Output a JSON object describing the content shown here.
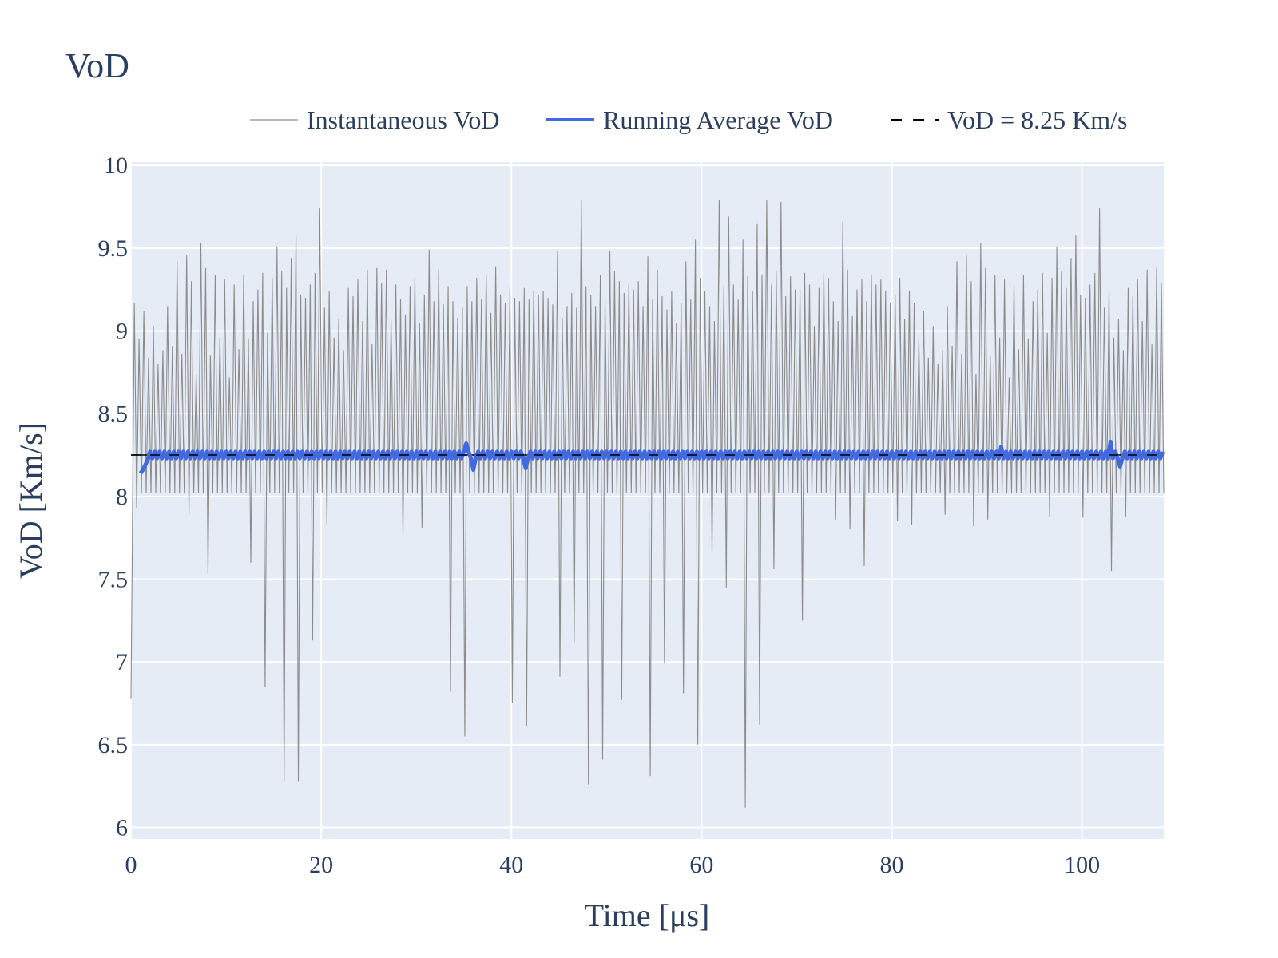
{
  "chart_data": {
    "type": "line",
    "title": "VoD",
    "xlabel": "Time [μs]",
    "ylabel": "VoD [Km/s]",
    "xlim": [
      0,
      108.6
    ],
    "ylim": [
      5.93,
      10.02
    ],
    "x_ticks": [
      0,
      20,
      40,
      60,
      80,
      100
    ],
    "x_tick_labels": [
      "0",
      "20",
      "40",
      "60",
      "80",
      "100"
    ],
    "y_ticks": [
      6,
      6.5,
      7,
      7.5,
      8,
      8.5,
      9,
      9.5,
      10
    ],
    "y_tick_labels": [
      "6",
      "6.5",
      "7",
      "7.5",
      "8",
      "8.5",
      "9",
      "9.5",
      "10"
    ],
    "grid": true,
    "legend_position": "top-right",
    "colors": {
      "plot_bg": "#e5ecf6",
      "grid": "#ffffff",
      "instantaneous": "#8c8c8c",
      "running_average": "#4169e1",
      "reference": "#000000",
      "text": "#2a3f5f"
    },
    "series": [
      {
        "name": "Instantaneous VoD",
        "style": "thin-gray",
        "sample_interval": 0.5,
        "baseline": 8.02,
        "x_range": [
          0,
          108.6
        ],
        "peaks": [
          9.17,
          8.95,
          9.12,
          8.84,
          9.03,
          8.8,
          8.88,
          9.15,
          8.91,
          9.42,
          8.86,
          9.46,
          9.3,
          8.74,
          9.53,
          9.38,
          8.85,
          9.34,
          8.96,
          9.31,
          8.72,
          9.28,
          8.89,
          9.34,
          8.95,
          9.18,
          9.25,
          9.35,
          8.99,
          9.32,
          9.51,
          9.36,
          9.26,
          9.44,
          9.58,
          9.22,
          9.2,
          9.28,
          9.35,
          9.74,
          9.14,
          9.24,
          8.96,
          9.07,
          8.88,
          9.26,
          9.21,
          9.31,
          9.06,
          9.37,
          8.92,
          9.38,
          9.29,
          9.37,
          9.07,
          9.28,
          9.19,
          9.1,
          9.27,
          9.32,
          9.05,
          9.22,
          9.49,
          9.18,
          9.37,
          9.16,
          9.27,
          9.18,
          9.08,
          9.14,
          9.27,
          9.18,
          9.32,
          9.19,
          9.34,
          9.11,
          9.39,
          9.22,
          9.17,
          9.27,
          9.2,
          9.18,
          9.26,
          9.19,
          9.24,
          9.22,
          9.24,
          9.2,
          9.16,
          9.48,
          9.08,
          9.15,
          9.23,
          9.14,
          9.79,
          9.27,
          9.22,
          9.15,
          9.34,
          9.19,
          9.48,
          9.36,
          9.3,
          9.23,
          9.28,
          9.25,
          9.3,
          9.15,
          9.45,
          9.19,
          9.37,
          9.21,
          9.13,
          9.24,
          9.05,
          9.17,
          9.42,
          9.19,
          9.55,
          9.32,
          9.24,
          9.15,
          9.06,
          9.79,
          9.27,
          9.69,
          9.28,
          9.19,
          9.55,
          9.33,
          9.24,
          9.65,
          9.34,
          9.79,
          9.28,
          9.36,
          9.78,
          9.21,
          9.33,
          9.25,
          9.25,
          9.35,
          9.28,
          9.03,
          9.26,
          9.35,
          9.32,
          9.18,
          9.06,
          9.66,
          9.37,
          9.09,
          9.25,
          9.31,
          9.18,
          9.34,
          9.28,
          9.31,
          9.24,
          9.17,
          9.22,
          9.32,
          9.07,
          9.24
        ],
        "dips": [
          {
            "x": 0.1,
            "y": 6.78
          },
          {
            "x": 0.4,
            "y": 7.93
          },
          {
            "x": 6.3,
            "y": 7.89
          },
          {
            "x": 7.9,
            "y": 7.53
          },
          {
            "x": 12.7,
            "y": 7.6
          },
          {
            "x": 14.3,
            "y": 6.85
          },
          {
            "x": 15.9,
            "y": 6.28
          },
          {
            "x": 17.6,
            "y": 6.28
          },
          {
            "x": 19.1,
            "y": 7.13
          },
          {
            "x": 20.8,
            "y": 7.83
          },
          {
            "x": 28.7,
            "y": 7.77
          },
          {
            "x": 30.5,
            "y": 7.81
          },
          {
            "x": 33.7,
            "y": 6.82
          },
          {
            "x": 35.3,
            "y": 6.55
          },
          {
            "x": 40.1,
            "y": 6.75
          },
          {
            "x": 41.7,
            "y": 6.61
          },
          {
            "x": 45.0,
            "y": 6.91
          },
          {
            "x": 46.6,
            "y": 7.12
          },
          {
            "x": 48.2,
            "y": 6.26
          },
          {
            "x": 49.8,
            "y": 6.41
          },
          {
            "x": 51.4,
            "y": 6.77
          },
          {
            "x": 54.7,
            "y": 6.31
          },
          {
            "x": 56.3,
            "y": 6.99
          },
          {
            "x": 57.9,
            "y": 6.81
          },
          {
            "x": 59.5,
            "y": 6.5
          },
          {
            "x": 61.1,
            "y": 7.66
          },
          {
            "x": 62.8,
            "y": 7.45
          },
          {
            "x": 64.4,
            "y": 6.12
          },
          {
            "x": 66.0,
            "y": 6.62
          },
          {
            "x": 67.6,
            "y": 7.56
          },
          {
            "x": 70.8,
            "y": 7.25
          },
          {
            "x": 74.1,
            "y": 7.86
          },
          {
            "x": 75.7,
            "y": 7.8
          },
          {
            "x": 77.3,
            "y": 7.58
          },
          {
            "x": 80.5,
            "y": 7.85
          },
          {
            "x": 82.1,
            "y": 7.83
          },
          {
            "x": 85.4,
            "y": 7.89
          },
          {
            "x": 88.6,
            "y": 7.82
          },
          {
            "x": 90.2,
            "y": 7.86
          },
          {
            "x": 96.7,
            "y": 7.88
          },
          {
            "x": 99.9,
            "y": 7.87
          },
          {
            "x": 103.1,
            "y": 7.55
          },
          {
            "x": 104.7,
            "y": 7.88
          }
        ]
      },
      {
        "name": "Running Average VoD",
        "style": "thick-blue",
        "x_range": [
          1.0,
          108.6
        ],
        "start_values": [
          8.14,
          8.16,
          8.19,
          8.22
        ],
        "steady_value": 8.25,
        "ripple": 0.02,
        "glitches": [
          {
            "x": 35.3,
            "y": 8.32
          },
          {
            "x": 36.0,
            "y": 8.16
          },
          {
            "x": 41.5,
            "y": 8.17
          },
          {
            "x": 91.5,
            "y": 8.3
          },
          {
            "x": 103.0,
            "y": 8.33
          },
          {
            "x": 104.0,
            "y": 8.18
          }
        ]
      },
      {
        "name": "VoD = 8.25 Km/s",
        "style": "black-dash",
        "x": [
          0,
          108.6
        ],
        "y": [
          8.25,
          8.25
        ]
      }
    ]
  }
}
